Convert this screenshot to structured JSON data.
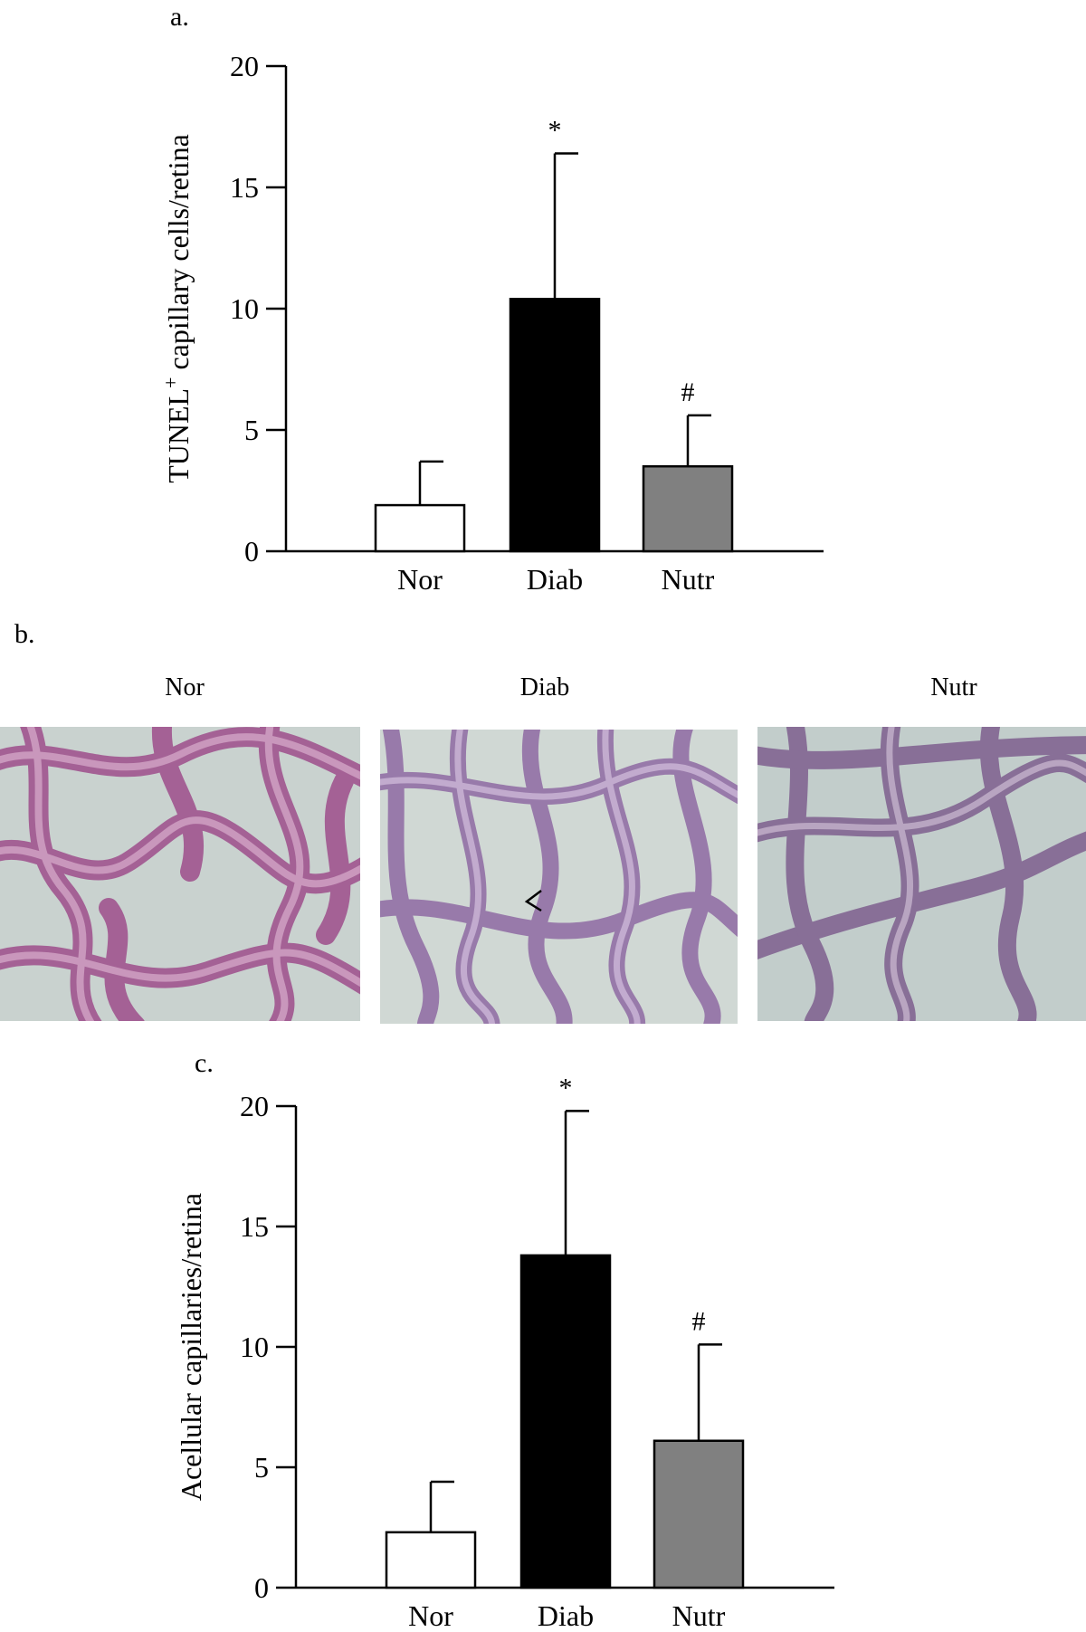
{
  "panels": {
    "a": {
      "label": "a."
    },
    "b": {
      "label": "b.",
      "image_titles": [
        "Nor",
        "Diab",
        "Nutr"
      ]
    },
    "c": {
      "label": "c."
    }
  },
  "chart_data": [
    {
      "type": "bar",
      "categories": [
        "Nor",
        "Diab",
        "Nutr"
      ],
      "values": [
        1.9,
        10.4,
        3.5
      ],
      "errors": [
        1.8,
        6.0,
        2.1
      ],
      "significance": [
        "",
        "*",
        "#"
      ],
      "bar_colors": [
        "#ffffff",
        "#000000",
        "#808080"
      ],
      "ylabel_main": "TUNEL",
      "ylabel_sup": "+",
      "ylabel_rest": " capillary cells/retina",
      "ylim": [
        0,
        20
      ],
      "yticks": [
        0,
        5,
        10,
        15,
        20
      ],
      "grid": false
    },
    {
      "type": "bar",
      "categories": [
        "Nor",
        "Diab",
        "Nutr"
      ],
      "values": [
        2.3,
        13.8,
        6.1
      ],
      "errors": [
        2.1,
        6.0,
        4.0
      ],
      "significance": [
        "",
        "*",
        "#"
      ],
      "bar_colors": [
        "#ffffff",
        "#000000",
        "#808080"
      ],
      "ylabel_main": "Acellular capillaries/retina",
      "ylabel_sup": "",
      "ylabel_rest": "",
      "ylim": [
        0,
        20
      ],
      "yticks": [
        0,
        5,
        10,
        15,
        20
      ],
      "grid": false
    }
  ]
}
